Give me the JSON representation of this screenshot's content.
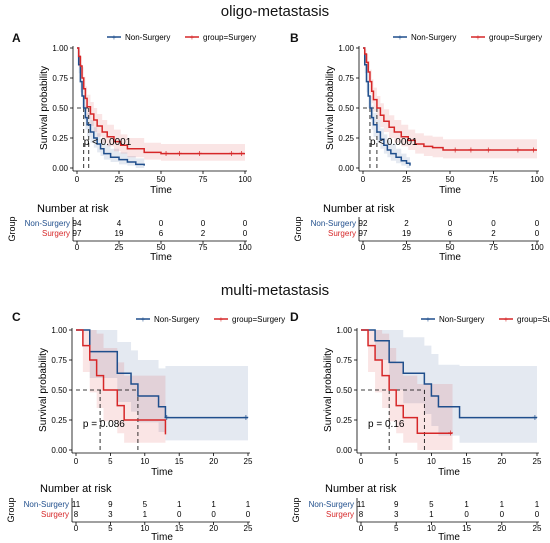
{
  "sections": {
    "top": "oligo-metastasis",
    "bottom": "multi-metastasis"
  },
  "colors": {
    "non_surgery": "#1f4e8c",
    "surgery": "#d62728"
  },
  "common": {
    "xlabel": "Time",
    "ylabel": "Survival probability",
    "risk_title": "Number at risk",
    "risk_group_label": "Group",
    "legend_non": "Non-Surgery",
    "legend_surg": "group=Surgery",
    "risk_row_non": "Non-Surgery",
    "risk_row_surg": "Surgery"
  },
  "chart_data": [
    {
      "type": "line",
      "label": "A",
      "pvalue": "p < 0.0001",
      "xlim": [
        0,
        100
      ],
      "xticks": [
        0,
        25,
        50,
        75,
        100
      ],
      "ylim": [
        0,
        1
      ],
      "yticks": [
        "0.00",
        "0.25",
        "0.50",
        "0.75",
        "1.00"
      ],
      "median_times": [
        4,
        7
      ],
      "series": [
        {
          "name": "Non-Surgery",
          "color_key": "non_surgery",
          "x": [
            0,
            1,
            2,
            3,
            4,
            5,
            6,
            8,
            10,
            12,
            14,
            16,
            20,
            25,
            30,
            35,
            40
          ],
          "y": [
            1.0,
            0.86,
            0.72,
            0.6,
            0.5,
            0.42,
            0.36,
            0.3,
            0.25,
            0.2,
            0.16,
            0.12,
            0.09,
            0.07,
            0.05,
            0.03,
            0.02
          ],
          "ci_upper": [
            1.0,
            0.93,
            0.82,
            0.7,
            0.6,
            0.52,
            0.46,
            0.4,
            0.34,
            0.29,
            0.24,
            0.2,
            0.16,
            0.13,
            0.1,
            0.08,
            0.06
          ],
          "ci_lower": [
            1.0,
            0.79,
            0.63,
            0.5,
            0.4,
            0.32,
            0.26,
            0.21,
            0.17,
            0.13,
            0.1,
            0.07,
            0.05,
            0.03,
            0.02,
            0.0,
            0.0
          ],
          "censor_x": [],
          "end_x": 40
        },
        {
          "name": "Surgery",
          "color_key": "surgery",
          "x": [
            0,
            1,
            2,
            3,
            4,
            5,
            6,
            8,
            10,
            12,
            15,
            18,
            22,
            26,
            30,
            40,
            50,
            100
          ],
          "y": [
            1.0,
            0.93,
            0.85,
            0.75,
            0.66,
            0.58,
            0.51,
            0.45,
            0.4,
            0.35,
            0.3,
            0.26,
            0.22,
            0.19,
            0.16,
            0.13,
            0.12,
            0.12
          ],
          "ci_upper": [
            1.0,
            0.98,
            0.93,
            0.84,
            0.76,
            0.68,
            0.61,
            0.55,
            0.5,
            0.45,
            0.4,
            0.36,
            0.32,
            0.28,
            0.25,
            0.21,
            0.2,
            0.2
          ],
          "ci_lower": [
            1.0,
            0.88,
            0.77,
            0.66,
            0.57,
            0.48,
            0.41,
            0.35,
            0.3,
            0.26,
            0.21,
            0.18,
            0.14,
            0.12,
            0.09,
            0.07,
            0.06,
            0.06
          ],
          "censor_x": [
            53,
            61,
            73,
            92,
            98
          ],
          "end_x": 100
        }
      ],
      "risk_table": {
        "times": [
          0,
          25,
          50,
          75,
          100
        ],
        "non_surgery": [
          94,
          4,
          0,
          0,
          0
        ],
        "surgery": [
          97,
          19,
          6,
          2,
          0
        ]
      }
    },
    {
      "type": "line",
      "label": "B",
      "pvalue": "p < 0.0001",
      "xlim": [
        0,
        100
      ],
      "xticks": [
        0,
        25,
        50,
        75,
        100
      ],
      "ylim": [
        0,
        1
      ],
      "yticks": [
        "0.00",
        "0.25",
        "0.50",
        "0.75",
        "1.00"
      ],
      "median_times": [
        4,
        8
      ],
      "series": [
        {
          "name": "Non-Surgery",
          "color_key": "non_surgery",
          "x": [
            0,
            1,
            2,
            3,
            4,
            5,
            6,
            8,
            10,
            12,
            14,
            16,
            19,
            22,
            25,
            27
          ],
          "y": [
            1.0,
            0.86,
            0.72,
            0.6,
            0.5,
            0.42,
            0.36,
            0.3,
            0.24,
            0.19,
            0.15,
            0.12,
            0.09,
            0.06,
            0.04,
            0.02
          ],
          "ci_upper": [
            1.0,
            0.93,
            0.82,
            0.7,
            0.6,
            0.52,
            0.46,
            0.4,
            0.33,
            0.28,
            0.23,
            0.2,
            0.16,
            0.12,
            0.09,
            0.06
          ],
          "ci_lower": [
            1.0,
            0.79,
            0.63,
            0.5,
            0.4,
            0.32,
            0.26,
            0.21,
            0.16,
            0.12,
            0.09,
            0.06,
            0.04,
            0.02,
            0.0,
            0.0
          ],
          "censor_x": [],
          "end_x": 27
        },
        {
          "name": "Surgery",
          "color_key": "surgery",
          "x": [
            0,
            1,
            2,
            3,
            4,
            5,
            6,
            8,
            10,
            12,
            15,
            18,
            22,
            26,
            30,
            35,
            40,
            46,
            100
          ],
          "y": [
            1.0,
            0.95,
            0.88,
            0.8,
            0.72,
            0.64,
            0.57,
            0.5,
            0.44,
            0.39,
            0.34,
            0.3,
            0.26,
            0.23,
            0.2,
            0.18,
            0.17,
            0.15,
            0.15
          ],
          "ci_upper": [
            1.0,
            0.99,
            0.95,
            0.89,
            0.82,
            0.74,
            0.67,
            0.6,
            0.54,
            0.49,
            0.44,
            0.4,
            0.36,
            0.32,
            0.29,
            0.27,
            0.26,
            0.24,
            0.24
          ],
          "ci_lower": [
            1.0,
            0.9,
            0.81,
            0.71,
            0.62,
            0.54,
            0.47,
            0.4,
            0.34,
            0.3,
            0.25,
            0.21,
            0.18,
            0.15,
            0.12,
            0.1,
            0.09,
            0.08,
            0.08
          ],
          "censor_x": [
            53,
            62,
            72,
            89,
            98
          ],
          "end_x": 100
        }
      ],
      "risk_table": {
        "times": [
          0,
          25,
          50,
          75,
          100
        ],
        "non_surgery": [
          92,
          2,
          0,
          0,
          0
        ],
        "surgery": [
          97,
          19,
          6,
          2,
          0
        ]
      }
    },
    {
      "type": "line",
      "label": "C",
      "pvalue": "p = 0.086",
      "xlim": [
        0,
        25
      ],
      "xticks": [
        0,
        5,
        10,
        15,
        20,
        25
      ],
      "ylim": [
        0,
        1
      ],
      "yticks": [
        "0.00",
        "0.25",
        "0.50",
        "0.75",
        "1.00"
      ],
      "median_times": [
        3.5,
        9
      ],
      "series": [
        {
          "name": "Non-Surgery",
          "color_key": "non_surgery",
          "x": [
            0,
            2,
            6,
            8,
            9,
            12,
            13,
            25
          ],
          "y": [
            1.0,
            0.82,
            0.64,
            0.55,
            0.45,
            0.36,
            0.27,
            0.27
          ],
          "ci_upper": [
            1.0,
            1.0,
            0.9,
            0.83,
            0.75,
            0.68,
            0.7,
            0.7
          ],
          "ci_lower": [
            1.0,
            0.6,
            0.4,
            0.32,
            0.23,
            0.15,
            0.08,
            0.08
          ],
          "censor_x": [
            13.2,
            24.7
          ],
          "end_x": 25
        },
        {
          "name": "Surgery",
          "color_key": "surgery",
          "x": [
            0,
            1,
            2,
            3,
            4,
            6,
            7,
            13
          ],
          "y": [
            1.0,
            0.87,
            0.75,
            0.62,
            0.5,
            0.37,
            0.25,
            0.13
          ],
          "ci_upper": [
            1.0,
            1.0,
            1.0,
            0.97,
            0.85,
            0.73,
            0.62,
            0.55
          ],
          "ci_lower": [
            1.0,
            0.65,
            0.48,
            0.35,
            0.24,
            0.14,
            0.06,
            0.0
          ],
          "censor_x": [],
          "end_x": 13
        }
      ],
      "risk_table": {
        "times": [
          0,
          5,
          10,
          15,
          20,
          25
        ],
        "non_surgery": [
          11,
          9,
          5,
          1,
          1,
          1
        ],
        "surgery": [
          8,
          3,
          1,
          0,
          0,
          0
        ]
      }
    },
    {
      "type": "line",
      "label": "D",
      "pvalue": "p = 0.16",
      "xlim": [
        0,
        25
      ],
      "xticks": [
        0,
        5,
        10,
        15,
        20,
        25
      ],
      "ylim": [
        0,
        1
      ],
      "yticks": [
        "0.00",
        "0.25",
        "0.50",
        "0.75",
        "1.00"
      ],
      "median_times": [
        4,
        9
      ],
      "series": [
        {
          "name": "Non-Surgery",
          "color_key": "non_surgery",
          "x": [
            0,
            2,
            4,
            6,
            9,
            10,
            11,
            14,
            25
          ],
          "y": [
            1.0,
            0.91,
            0.73,
            0.64,
            0.55,
            0.45,
            0.36,
            0.27,
            0.27
          ],
          "ci_upper": [
            1.0,
            1.0,
            1.0,
            0.94,
            0.87,
            0.8,
            0.71,
            0.7,
            0.7
          ],
          "ci_lower": [
            1.0,
            0.75,
            0.5,
            0.39,
            0.3,
            0.2,
            0.12,
            0.06,
            0.06
          ],
          "censor_x": [
            24.7
          ],
          "end_x": 25
        },
        {
          "name": "Surgery",
          "color_key": "surgery",
          "x": [
            0,
            1,
            2,
            3,
            4,
            5,
            6,
            8,
            13
          ],
          "y": [
            1.0,
            0.87,
            0.75,
            0.62,
            0.5,
            0.37,
            0.27,
            0.14,
            0.14
          ],
          "ci_upper": [
            1.0,
            1.0,
            1.0,
            0.97,
            0.85,
            0.73,
            0.62,
            0.55,
            0.55
          ],
          "ci_lower": [
            1.0,
            0.65,
            0.48,
            0.35,
            0.24,
            0.14,
            0.06,
            0.0,
            0.0
          ],
          "censor_x": [
            12.7
          ],
          "end_x": 13
        }
      ],
      "risk_table": {
        "times": [
          0,
          5,
          10,
          15,
          20,
          25
        ],
        "non_surgery": [
          11,
          9,
          5,
          1,
          1,
          1
        ],
        "surgery": [
          8,
          3,
          1,
          0,
          0,
          0
        ]
      }
    }
  ]
}
